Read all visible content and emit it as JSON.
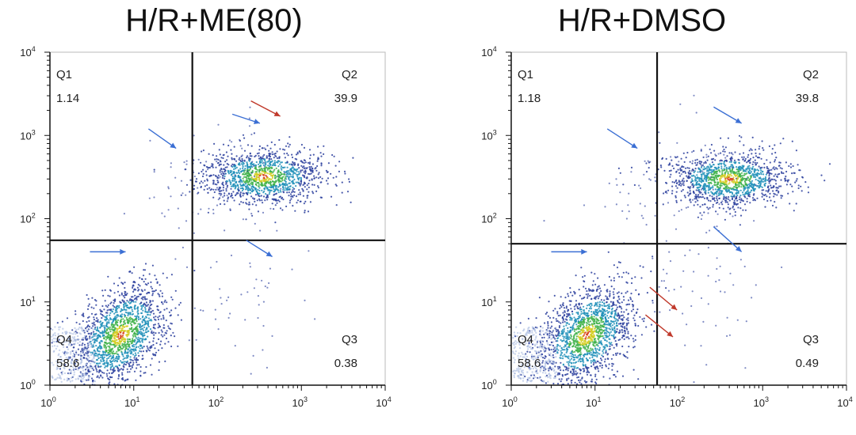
{
  "chart_data": [
    {
      "type": "scatter",
      "title": "H/R+ME(80)",
      "xlabel": "",
      "ylabel": "",
      "x_scale": "log",
      "y_scale": "log",
      "xlim": [
        1,
        10000
      ],
      "ylim": [
        1,
        10000
      ],
      "x_ticks": [
        "10",
        "10",
        "10",
        "10",
        "10"
      ],
      "x_tick_exponents": [
        "0",
        "1",
        "2",
        "3",
        "4"
      ],
      "y_ticks": [
        "10",
        "10",
        "10",
        "10",
        "10"
      ],
      "y_tick_exponents": [
        "0",
        "1",
        "2",
        "3",
        "4"
      ],
      "gate": {
        "x": 50,
        "y": 55
      },
      "quadrants": [
        {
          "name": "Q1",
          "value": "1.14",
          "position": "top-left"
        },
        {
          "name": "Q2",
          "value": "39.9",
          "position": "top-right"
        },
        {
          "name": "Q3",
          "value": "0.38",
          "position": "bottom-right"
        },
        {
          "name": "Q4",
          "value": "58.6",
          "position": "bottom-left"
        }
      ],
      "clusters": [
        {
          "name": "",
          "center": [
            7,
            4
          ],
          "spread": [
            0.28,
            0.28
          ],
          "count": 1600,
          "density_color": true
        },
        {
          "name": "",
          "center": [
            350,
            320
          ],
          "spread": [
            0.35,
            0.16
          ],
          "count": 1300,
          "density_color": true
        },
        {
          "name": "",
          "center": [
            80,
            250
          ],
          "spread": [
            0.45,
            0.35
          ],
          "count": 90,
          "density_color": false
        },
        {
          "name": "",
          "center": [
            200,
            12
          ],
          "spread": [
            0.4,
            0.45
          ],
          "count": 50,
          "density_color": false
        }
      ],
      "arrows": [
        {
          "color": "#3b6fd4",
          "from": [
            15,
            1200
          ],
          "to": [
            32,
            700
          ]
        },
        {
          "color": "#3b6fd4",
          "from": [
            3,
            40
          ],
          "to": [
            8,
            40
          ]
        },
        {
          "color": "#3b6fd4",
          "from": [
            150,
            1800
          ],
          "to": [
            320,
            1400
          ]
        },
        {
          "color": "#c0392b",
          "from": [
            250,
            2600
          ],
          "to": [
            560,
            1700
          ]
        },
        {
          "color": "#3b6fd4",
          "from": [
            220,
            55
          ],
          "to": [
            450,
            35
          ]
        }
      ],
      "colors": {
        "axis": "#111111",
        "gate": "#111111",
        "dot": "#2b3f9e"
      }
    },
    {
      "type": "scatter",
      "title": "H/R+DMSO",
      "xlabel": "",
      "ylabel": "",
      "x_scale": "log",
      "y_scale": "log",
      "xlim": [
        1,
        10000
      ],
      "ylim": [
        1,
        10000
      ],
      "x_ticks": [
        "10",
        "10",
        "10",
        "10",
        "10"
      ],
      "x_tick_exponents": [
        "0",
        "1",
        "2",
        "3",
        "4"
      ],
      "y_ticks": [
        "10",
        "10",
        "10",
        "10",
        "10"
      ],
      "y_tick_exponents": [
        "0",
        "1",
        "2",
        "3",
        "4"
      ],
      "gate": {
        "x": 55,
        "y": 50
      },
      "quadrants": [
        {
          "name": "Q1",
          "value": "1.18",
          "position": "top-left"
        },
        {
          "name": "Q2",
          "value": "39.8",
          "position": "top-right"
        },
        {
          "name": "Q3",
          "value": "0.49",
          "position": "bottom-right"
        },
        {
          "name": "Q4",
          "value": "58.6",
          "position": "bottom-left"
        }
      ],
      "clusters": [
        {
          "name": "",
          "center": [
            8,
            4
          ],
          "spread": [
            0.28,
            0.28
          ],
          "count": 1600,
          "density_color": true
        },
        {
          "name": "",
          "center": [
            400,
            300
          ],
          "spread": [
            0.35,
            0.16
          ],
          "count": 1300,
          "density_color": true
        },
        {
          "name": "",
          "center": [
            80,
            250
          ],
          "spread": [
            0.45,
            0.35
          ],
          "count": 90,
          "density_color": false
        },
        {
          "name": "",
          "center": [
            200,
            15
          ],
          "spread": [
            0.4,
            0.45
          ],
          "count": 60,
          "density_color": false
        }
      ],
      "arrows": [
        {
          "color": "#3b6fd4",
          "from": [
            14,
            1200
          ],
          "to": [
            32,
            700
          ]
        },
        {
          "color": "#3b6fd4",
          "from": [
            3,
            40
          ],
          "to": [
            8,
            40
          ]
        },
        {
          "color": "#3b6fd4",
          "from": [
            260,
            2200
          ],
          "to": [
            560,
            1400
          ]
        },
        {
          "color": "#3b6fd4",
          "from": [
            260,
            80
          ],
          "to": [
            560,
            40
          ]
        },
        {
          "color": "#c0392b",
          "from": [
            45,
            15
          ],
          "to": [
            95,
            8
          ]
        },
        {
          "color": "#c0392b",
          "from": [
            40,
            7
          ],
          "to": [
            85,
            3.8
          ]
        }
      ],
      "colors": {
        "axis": "#111111",
        "gate": "#111111",
        "dot": "#2b3f9e"
      }
    }
  ]
}
